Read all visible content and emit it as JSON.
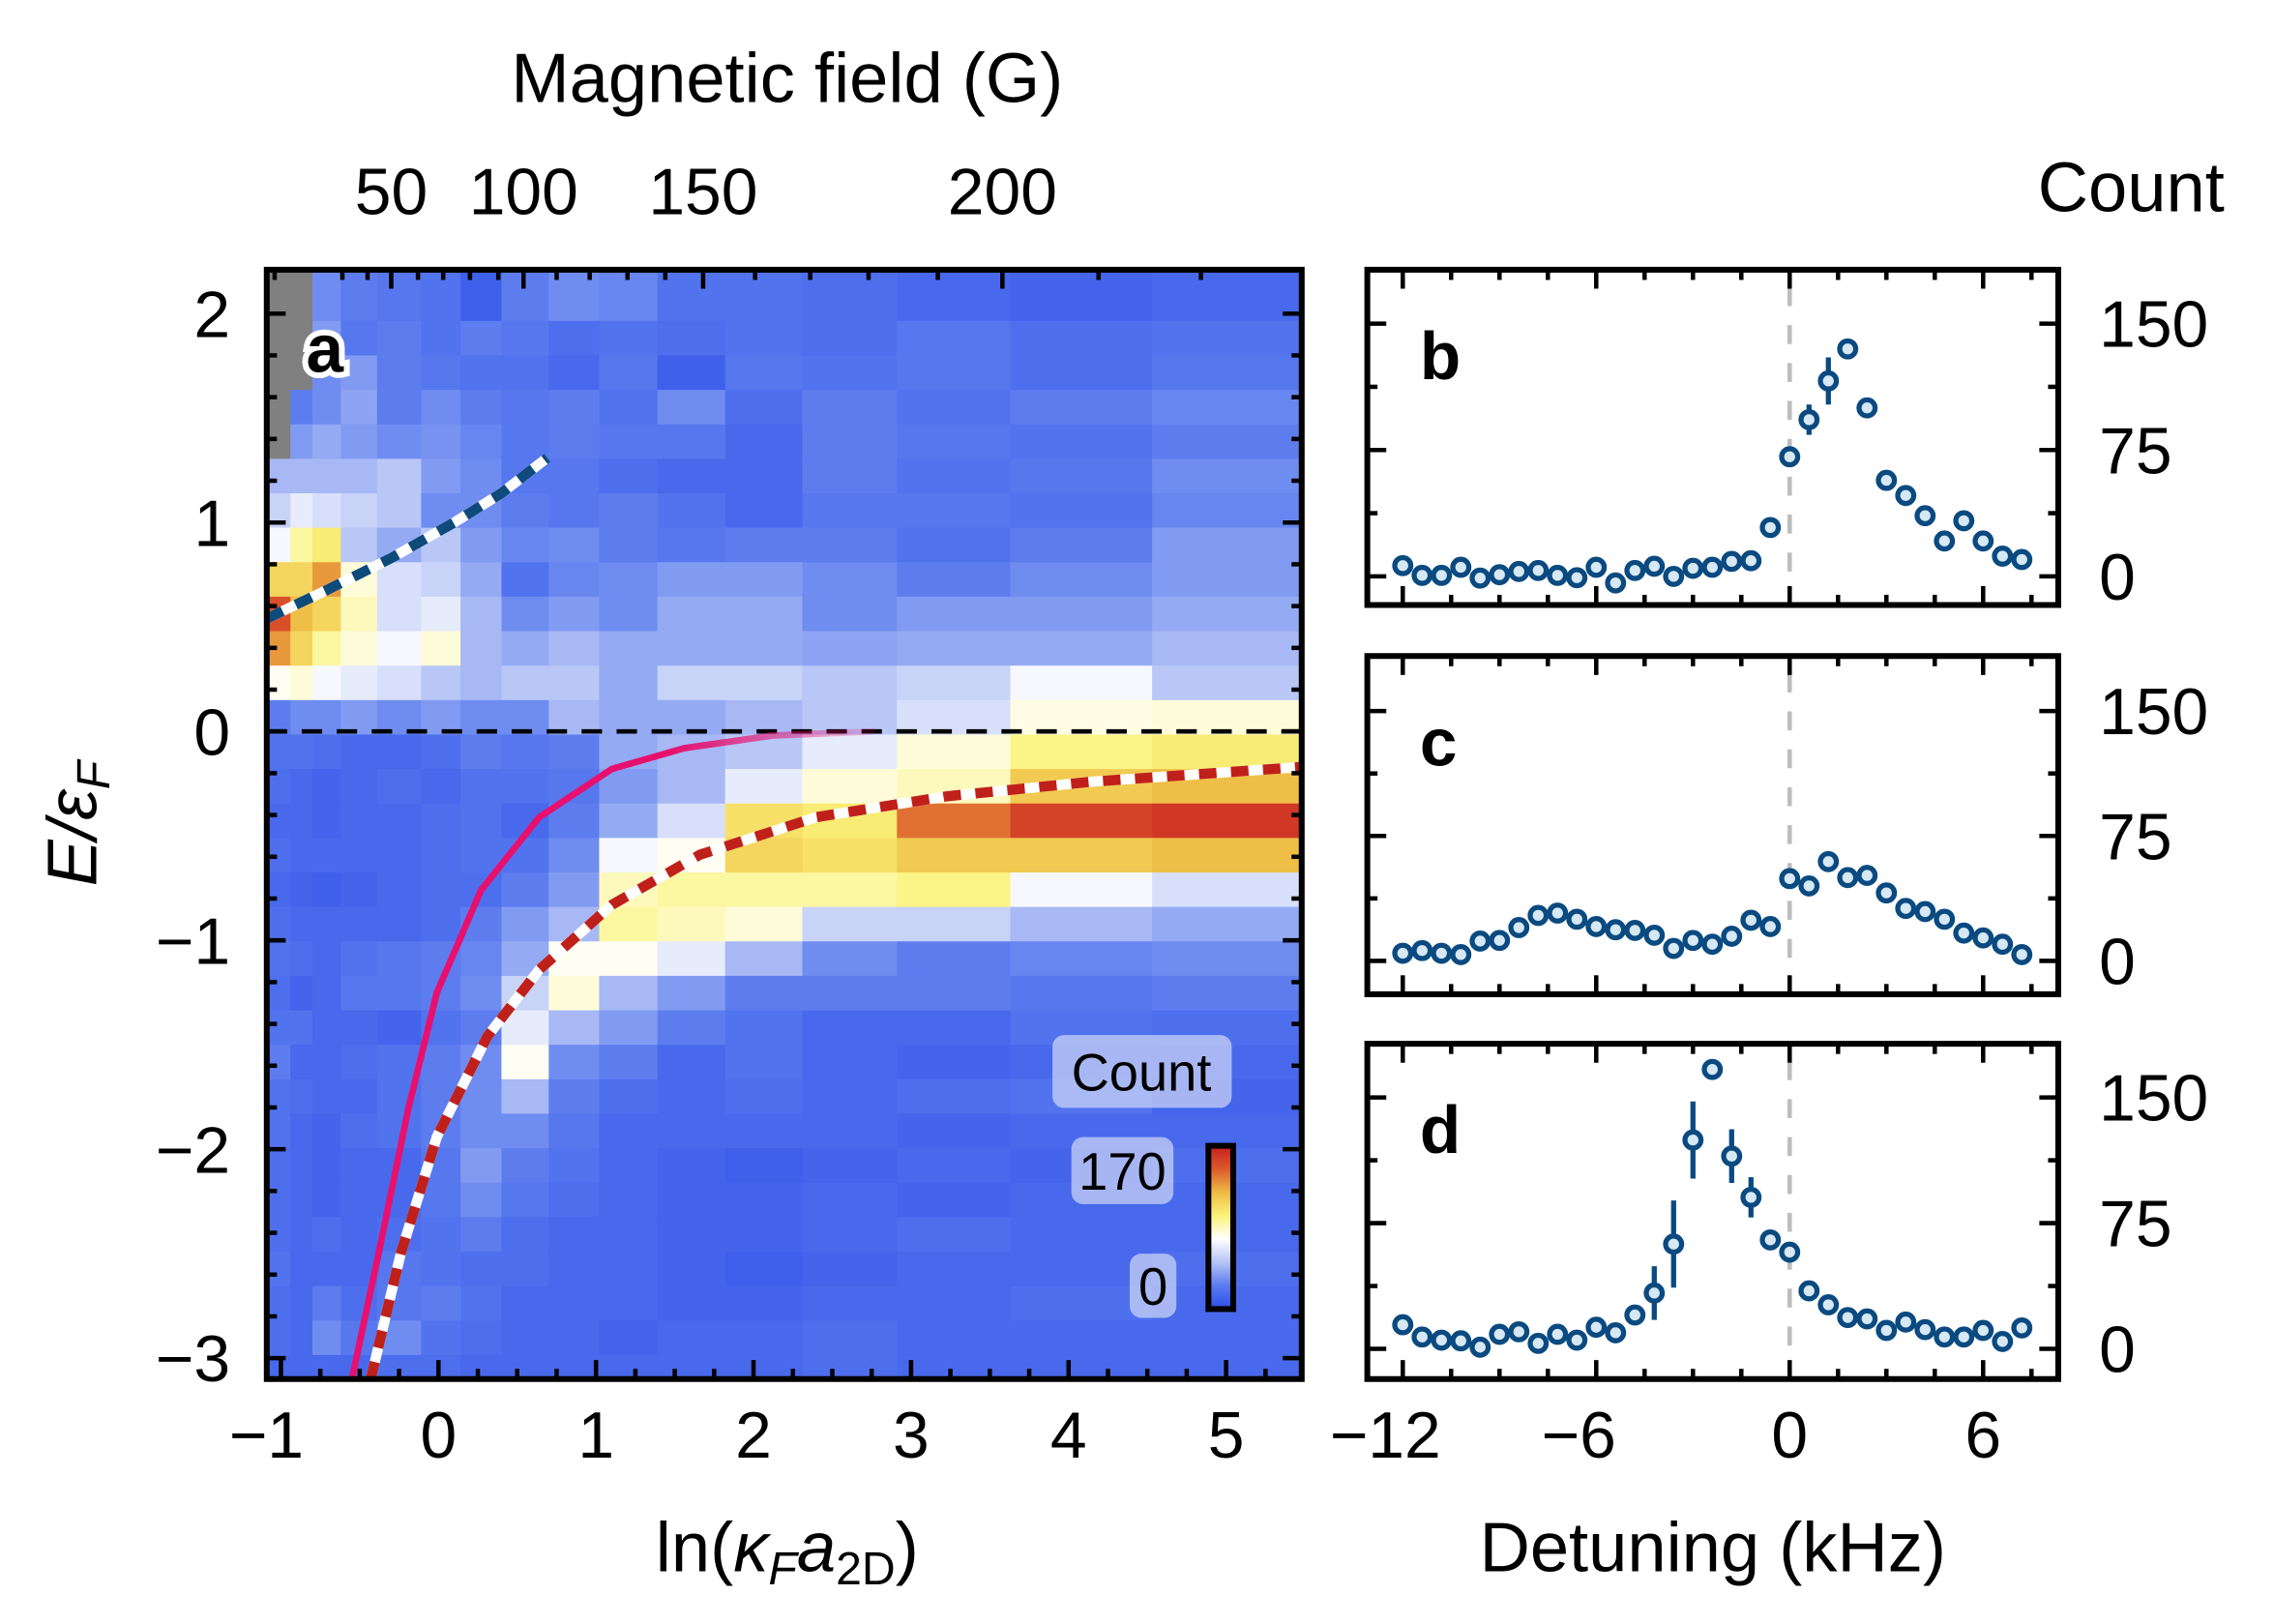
{
  "chart_data": [
    {
      "panel": "a",
      "type": "heatmap",
      "panel_label": "a",
      "xlabel": {
        "prefix": "ln(",
        "kappa": "κ",
        "kappa_sub": "F",
        "a": "a",
        "a_sub": "2D",
        "suffix": ")"
      },
      "ylabel": {
        "main": "E/ε",
        "sub": "F"
      },
      "xlim": [
        -1.09,
        5.48
      ],
      "ylim": [
        -3.1,
        2.21
      ],
      "x_ticks": [
        "−1",
        "0",
        "1",
        "2",
        "3",
        "4",
        "5"
      ],
      "x_tick_values": [
        -1,
        0,
        1,
        2,
        3,
        4,
        5
      ],
      "y_ticks": [
        "2",
        "1",
        "0",
        "−1",
        "−2",
        "−3"
      ],
      "y_tick_values": [
        2,
        1,
        0,
        -1,
        -2,
        -3
      ],
      "top_axis": {
        "label": "Magnetic field (G)",
        "ticks": [
          {
            "label": "50",
            "x": -0.3
          },
          {
            "label": "100",
            "x": 0.54
          },
          {
            "label": "150",
            "x": 1.68
          },
          {
            "label": "200",
            "x": 3.58
          }
        ],
        "minor_tick_x": [
          -1.04,
          -0.61,
          -0.45,
          -0.13,
          0.03,
          0.2,
          0.38,
          0.75,
          0.96,
          1.2,
          1.44,
          2.01,
          2.36,
          2.73,
          3.17,
          4.19,
          4.84
        ]
      },
      "x_edges": [
        -1.09,
        -0.94,
        -0.8,
        -0.62,
        -0.39,
        -0.11,
        0.14,
        0.4,
        0.7,
        1.02,
        1.39,
        1.82,
        2.31,
        2.91,
        3.63,
        4.53,
        5.48
      ],
      "e_edges": [
        2.21,
        2.13,
        1.965,
        1.8,
        1.635,
        1.47,
        1.305,
        1.14,
        0.975,
        0.81,
        0.645,
        0.48,
        0.315,
        0.15,
        -0.015,
        -0.18,
        -0.345,
        -0.51,
        -0.675,
        -0.84,
        -1.005,
        -1.17,
        -1.335,
        -1.5,
        -1.665,
        -1.83,
        -1.995,
        -2.16,
        -2.325,
        -2.49,
        -2.655,
        -2.82,
        -2.985,
        -3.1
      ],
      "counts": [
        [
          null,
          null,
          30,
          25,
          22,
          20,
          10,
          25,
          30,
          28,
          20,
          20,
          18,
          15,
          12,
          15
        ],
        [
          null,
          null,
          30,
          25,
          22,
          20,
          10,
          25,
          30,
          28,
          20,
          20,
          18,
          15,
          12,
          15
        ],
        [
          null,
          null,
          35,
          22,
          25,
          20,
          25,
          22,
          18,
          20,
          18,
          20,
          18,
          22,
          18,
          20
        ],
        [
          null,
          null,
          30,
          35,
          25,
          22,
          20,
          20,
          15,
          22,
          10,
          22,
          20,
          22,
          18,
          22
        ],
        [
          null,
          25,
          30,
          38,
          25,
          30,
          25,
          22,
          25,
          20,
          30,
          18,
          25,
          20,
          25,
          28
        ],
        [
          null,
          35,
          40,
          35,
          30,
          32,
          28,
          22,
          25,
          22,
          22,
          15,
          25,
          22,
          20,
          25
        ],
        [
          45,
          45,
          45,
          45,
          50,
          35,
          30,
          22,
          22,
          18,
          15,
          15,
          25,
          20,
          22,
          30
        ],
        [
          55,
          65,
          60,
          55,
          50,
          30,
          30,
          25,
          22,
          25,
          20,
          15,
          22,
          22,
          20,
          28
        ],
        [
          70,
          90,
          100,
          50,
          40,
          50,
          35,
          28,
          30,
          25,
          22,
          25,
          25,
          20,
          25,
          35
        ],
        [
          110,
          110,
          130,
          80,
          60,
          55,
          40,
          20,
          28,
          30,
          35,
          35,
          30,
          25,
          30,
          35
        ],
        [
          150,
          120,
          110,
          85,
          60,
          65,
          45,
          30,
          35,
          30,
          40,
          40,
          30,
          35,
          35,
          40
        ],
        [
          130,
          110,
          90,
          80,
          70,
          80,
          45,
          40,
          45,
          40,
          40,
          40,
          38,
          40,
          40,
          45
        ],
        [
          75,
          80,
          70,
          65,
          60,
          50,
          45,
          50,
          50,
          40,
          55,
          55,
          50,
          55,
          70,
          50
        ],
        [
          25,
          30,
          30,
          35,
          30,
          35,
          30,
          30,
          45,
          40,
          40,
          45,
          50,
          60,
          78,
          80
        ],
        [
          20,
          20,
          18,
          15,
          15,
          18,
          25,
          22,
          25,
          40,
          45,
          50,
          65,
          80,
          95,
          100
        ],
        [
          18,
          15,
          12,
          15,
          18,
          15,
          20,
          20,
          22,
          35,
          45,
          65,
          80,
          85,
          115,
          120
        ],
        [
          15,
          15,
          12,
          15,
          15,
          18,
          20,
          15,
          25,
          40,
          60,
          105,
          100,
          140,
          155,
          160
        ],
        [
          18,
          15,
          15,
          15,
          15,
          18,
          20,
          20,
          30,
          70,
          75,
          110,
          105,
          115,
          115,
          120
        ],
        [
          15,
          12,
          10,
          12,
          15,
          18,
          18,
          25,
          35,
          85,
          90,
          90,
          90,
          95,
          70,
          60
        ],
        [
          18,
          15,
          15,
          15,
          15,
          18,
          25,
          35,
          45,
          90,
          85,
          80,
          55,
          55,
          45,
          40
        ],
        [
          20,
          18,
          15,
          20,
          22,
          25,
          28,
          40,
          75,
          75,
          65,
          45,
          30,
          25,
          28,
          30
        ],
        [
          18,
          12,
          15,
          22,
          22,
          25,
          30,
          55,
          80,
          45,
          35,
          25,
          25,
          25,
          22,
          25
        ],
        [
          20,
          20,
          15,
          15,
          12,
          20,
          25,
          65,
          45,
          35,
          25,
          20,
          15,
          15,
          20,
          18
        ],
        [
          25,
          15,
          15,
          18,
          20,
          25,
          30,
          75,
          30,
          25,
          15,
          20,
          15,
          12,
          15,
          15
        ],
        [
          20,
          18,
          15,
          15,
          20,
          25,
          30,
          45,
          25,
          18,
          15,
          18,
          15,
          18,
          20,
          12
        ],
        [
          20,
          15,
          12,
          18,
          20,
          25,
          30,
          30,
          22,
          15,
          15,
          15,
          15,
          12,
          15,
          15
        ],
        [
          18,
          15,
          12,
          15,
          15,
          22,
          35,
          25,
          20,
          15,
          12,
          10,
          12,
          15,
          12,
          18
        ],
        [
          18,
          15,
          12,
          15,
          15,
          22,
          30,
          22,
          18,
          15,
          12,
          12,
          15,
          12,
          15,
          15
        ],
        [
          18,
          15,
          18,
          15,
          18,
          20,
          25,
          18,
          15,
          15,
          12,
          12,
          15,
          18,
          15,
          15
        ],
        [
          20,
          15,
          15,
          15,
          22,
          20,
          18,
          18,
          15,
          15,
          12,
          10,
          12,
          15,
          15,
          18
        ],
        [
          18,
          15,
          25,
          18,
          22,
          25,
          20,
          15,
          15,
          15,
          12,
          12,
          15,
          15,
          18,
          15
        ],
        [
          18,
          15,
          30,
          22,
          30,
          20,
          18,
          15,
          15,
          12,
          15,
          15,
          18,
          15,
          15,
          15
        ],
        [
          15,
          15,
          15,
          15,
          18,
          18,
          15,
          15,
          15,
          15,
          15,
          15,
          18,
          15,
          15,
          15
        ]
      ],
      "colorbar": {
        "title": "Count",
        "max_label": "170",
        "min_label": "0",
        "range": [
          0,
          170
        ],
        "colormap": [
          "#2c4de8",
          "#5a7bef",
          "#b4c3f5",
          "#ffffff",
          "#fbf37a",
          "#eebb44",
          "#dc5a2c",
          "#c81e20"
        ],
        "nan_color": "#808080"
      },
      "curves": [
        {
          "style": "dashed-blue-white",
          "color": "#0e4a7a",
          "x": [
            -1.09,
            -0.7,
            -0.3,
            0.1,
            0.4,
            0.69
          ],
          "y": [
            0.54,
            0.68,
            0.83,
            1.0,
            1.14,
            1.31
          ]
        },
        {
          "style": "solid-fading",
          "color": "#e8106e",
          "x": [
            -0.55,
            -0.38,
            -0.19,
            -0.01,
            0.27,
            0.64,
            1.1,
            1.56,
            2.12,
            2.77
          ],
          "y": [
            -3.1,
            -2.5,
            -1.8,
            -1.25,
            -0.76,
            -0.41,
            -0.18,
            -0.08,
            -0.02,
            0.0
          ]
        },
        {
          "style": "dashed-red-white",
          "color": "#c0201a",
          "x": [
            -0.43,
            -0.24,
            -0.01,
            0.31,
            0.64,
            1.1,
            1.66,
            2.4,
            3.23,
            4.16,
            5.48
          ],
          "y": [
            -3.1,
            -2.5,
            -1.94,
            -1.46,
            -1.14,
            -0.83,
            -0.59,
            -0.41,
            -0.31,
            -0.24,
            -0.17
          ]
        }
      ],
      "reference_line_E": 0
    },
    {
      "panel": "b",
      "type": "scatter",
      "panel_label": "b",
      "xlim": [
        -13.1,
        8.33
      ],
      "ylim": [
        -17,
        182
      ],
      "y_ticks": [
        "0",
        "75",
        "150"
      ],
      "y_tick_values": [
        0,
        75,
        150
      ],
      "x": [
        -12,
        -11.4,
        -10.8,
        -10.2,
        -9.6,
        -9,
        -8.4,
        -7.8,
        -7.2,
        -6.6,
        -6,
        -5.4,
        -4.8,
        -4.2,
        -3.6,
        -3,
        -2.4,
        -1.8,
        -1.2,
        -0.6,
        0,
        0.6,
        1.2,
        1.8,
        2.4,
        3,
        3.6,
        4.2,
        4.8,
        5.4,
        6,
        6.6,
        7.2
      ],
      "y": [
        6.4,
        0.6,
        0.6,
        5.4,
        -1,
        1,
        2.9,
        3.5,
        0.6,
        -0.8,
        5.4,
        -3.9,
        3.5,
        6,
        0,
        4.8,
        5.4,
        8.9,
        9.3,
        29,
        71,
        93,
        116,
        135,
        100,
        57,
        48,
        36,
        21,
        33,
        21,
        12,
        10
      ],
      "yerr": [
        0,
        0,
        0,
        0,
        0,
        0,
        0,
        0,
        0,
        0,
        0,
        0,
        0,
        0,
        0,
        0,
        0,
        0,
        0,
        0,
        0,
        9,
        14,
        0,
        0,
        0,
        0,
        0,
        0,
        0,
        0,
        0,
        0
      ]
    },
    {
      "panel": "c",
      "type": "scatter",
      "panel_label": "c",
      "xlim": [
        -13.1,
        8.33
      ],
      "ylim": [
        -20,
        183
      ],
      "y_ticks": [
        "0",
        "75",
        "150"
      ],
      "y_tick_values": [
        0,
        75,
        150
      ],
      "x": [
        -12,
        -11.4,
        -10.8,
        -10.2,
        -9.6,
        -9,
        -8.4,
        -7.8,
        -7.2,
        -6.6,
        -6,
        -5.4,
        -4.8,
        -4.2,
        -3.6,
        -3,
        -2.4,
        -1.8,
        -1.2,
        -0.6,
        0,
        0.6,
        1.2,
        1.8,
        2.4,
        3,
        3.6,
        4.2,
        4.8,
        5.4,
        6,
        6.6,
        7.2
      ],
      "y": [
        4.6,
        6.2,
        4.6,
        3.8,
        11.9,
        12.3,
        20,
        27.3,
        28.7,
        25,
        20.6,
        18.7,
        18.3,
        15.4,
        7.5,
        12.3,
        10,
        14.8,
        24.4,
        20.6,
        49.4,
        45,
        59.6,
        50,
        51.3,
        40.8,
        31.5,
        29.6,
        25,
        16.7,
        13.8,
        10,
        3.8
      ],
      "yerr": [
        0,
        0,
        0,
        0,
        0,
        0,
        0,
        0,
        0,
        0,
        0,
        0,
        0,
        0,
        0,
        0,
        0,
        0,
        0,
        0,
        0,
        5,
        0,
        0,
        0,
        0,
        0,
        0,
        0,
        0,
        0,
        0,
        0
      ]
    },
    {
      "panel": "d",
      "type": "scatter",
      "panel_label": "d",
      "xlabel": "Detuning (kHz)",
      "x_ticks": [
        "−12",
        "−6",
        "0",
        "6"
      ],
      "x_tick_values": [
        -12,
        -6,
        0,
        6
      ],
      "xlim": [
        -13.1,
        8.33
      ],
      "ylim": [
        -18,
        182
      ],
      "y_ticks": [
        "0",
        "75",
        "150"
      ],
      "y_tick_values": [
        0,
        75,
        150
      ],
      "x": [
        -12,
        -11.4,
        -10.8,
        -10.2,
        -9.6,
        -9,
        -8.4,
        -7.8,
        -7.2,
        -6.6,
        -6,
        -5.4,
        -4.8,
        -4.2,
        -3.6,
        -3,
        -2.4,
        -1.8,
        -1.2,
        -0.6,
        0,
        0.6,
        1.2,
        1.8,
        2.4,
        3,
        3.6,
        4.2,
        4.8,
        5.4,
        6,
        6.6,
        7.2
      ],
      "y": [
        14.4,
        7.1,
        5.2,
        4.8,
        1,
        8.7,
        10.2,
        3.3,
        8.7,
        5.2,
        12.9,
        9.6,
        20.2,
        33.3,
        62.5,
        124.6,
        166.7,
        115,
        90.4,
        65,
        57.7,
        34.6,
        26.3,
        18.7,
        17.9,
        11,
        16,
        11.5,
        7.1,
        7.1,
        11,
        4.4,
        12.5
      ],
      "yerr": [
        0,
        0,
        0,
        0,
        0,
        0,
        0,
        0,
        0,
        5,
        0,
        0,
        0,
        16,
        26,
        23,
        0,
        16,
        12,
        0,
        0,
        0,
        0,
        0,
        0,
        0,
        0,
        0,
        0,
        0,
        0,
        0,
        0
      ]
    }
  ],
  "right_axis_title": "Count",
  "marker": {
    "edge_color": "#0a4a80",
    "face_color": "#d6e8f3"
  },
  "zero_detuning_line_color": "#bdbdbd"
}
